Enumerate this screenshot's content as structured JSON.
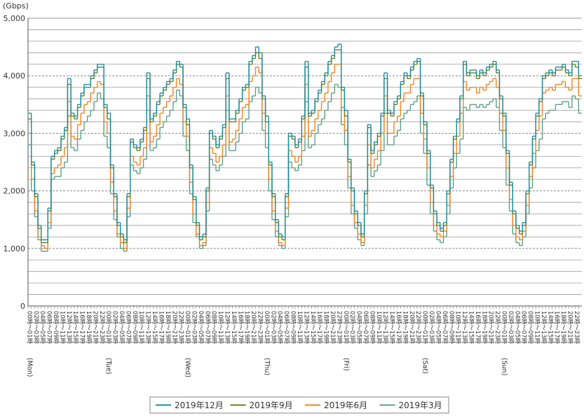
{
  "chart_data": {
    "type": "step-line",
    "y_unit": "(Gbps)",
    "ylim": [
      0,
      5000
    ],
    "yticks": [
      0,
      {
        "value": 1000,
        "label": "1,000"
      },
      {
        "value": 2000,
        "label": "2,000"
      },
      {
        "value": 3000,
        "label": "3,000"
      },
      {
        "value": 4000,
        "label": "4,000"
      },
      {
        "value": 5000,
        "label": "5,000"
      }
    ],
    "minor_yticks": [
      200,
      400,
      600,
      800,
      1200,
      1400,
      1600,
      1800,
      2200,
      2400,
      2600,
      2800,
      3200,
      3400,
      3600,
      3800,
      4200,
      4400,
      4600,
      4800
    ],
    "grid": true,
    "day_labels": [
      "(Mon)",
      "(Tue)",
      "(Wed)",
      "(Thu)",
      "(Fri)",
      "(Sat)",
      "(Sun)"
    ],
    "categories": [
      "00時～01時",
      null,
      "02時～03時",
      null,
      "04時～05時",
      null,
      "06時～07時",
      null,
      "08時～09時",
      null,
      "10時～11時",
      null,
      "12時～13時",
      null,
      "14時～15時",
      null,
      "16時～17時",
      null,
      "18時～19時",
      null,
      "20時～21時",
      null,
      "22時～23時",
      null,
      "00時～01時",
      null,
      "02時～03時",
      null,
      "04時～05時",
      null,
      "06時～07時",
      null,
      "08時～09時",
      null,
      "10時～11時",
      null,
      "12時～13時",
      null,
      "14時～15時",
      null,
      "16時～17時",
      null,
      "18時～19時",
      null,
      "20時～21時",
      null,
      "22時～23時",
      null,
      "00時～01時",
      null,
      "02時～03時",
      null,
      "04時～05時",
      null,
      "06時～07時",
      null,
      "08時～09時",
      null,
      "10時～11時",
      null,
      "12時～13時",
      null,
      "14時～15時",
      null,
      "16時～17時",
      null,
      "18時～19時",
      null,
      "20時～21時",
      null,
      "22時～23時",
      null,
      "00時～01時",
      null,
      "02時～03時",
      null,
      "04時～05時",
      null,
      "06時～07時",
      null,
      "08時～09時",
      null,
      "10時～11時",
      null,
      "12時～13時",
      null,
      "14時～15時",
      null,
      "16時～17時",
      null,
      "18時～19時",
      null,
      "20時～21時",
      null,
      "22時～23時",
      null,
      "00時～01時",
      null,
      "02時～03時",
      null,
      "04時～05時",
      null,
      "06時～07時",
      null,
      "08時～09時",
      null,
      "10時～11時",
      null,
      "12時～13時",
      null,
      "14時～15時",
      null,
      "16時～17時",
      null,
      "18時～19時",
      null,
      "20時～21時",
      null,
      "22時～23時",
      null,
      "00時～01時",
      null,
      "02時～03時",
      null,
      "04時～05時",
      null,
      "06時～07時",
      null,
      "08時～09時",
      null,
      "10時～11時",
      null,
      "12時～13時",
      null,
      "14時～15時",
      null,
      "16時～17時",
      null,
      "18時～19時",
      null,
      "20時～21時",
      null,
      "22時～23時",
      null,
      "00時～01時",
      null,
      "02時～03時",
      null,
      "04時～05時",
      null,
      "06時～07時",
      null,
      "08時～09時",
      null,
      "10時～11時",
      null,
      "12時～13時",
      null,
      "14時～15時",
      null,
      "16時～17時",
      null,
      "18時～19時",
      null,
      "20時～21時",
      null,
      "22時～23時",
      null
    ],
    "series": [
      {
        "name": "2019年12月",
        "color": "#1b8ea3",
        "values": [
          3350,
          2500,
          1950,
          1400,
          1150,
          1150,
          1700,
          2600,
          2700,
          2750,
          2950,
          3100,
          3950,
          3350,
          3300,
          3500,
          3700,
          3850,
          3850,
          4000,
          4100,
          4200,
          4200,
          3500,
          3350,
          2450,
          1950,
          1450,
          1250,
          1150,
          1950,
          2900,
          2800,
          2750,
          2900,
          3100,
          4050,
          3250,
          3350,
          3550,
          3700,
          3800,
          3900,
          3950,
          4100,
          4250,
          4200,
          3500,
          3250,
          2450,
          1900,
          1450,
          1200,
          1250,
          2050,
          3050,
          2950,
          2800,
          2950,
          3150,
          4050,
          3250,
          3250,
          3400,
          3600,
          3800,
          3850,
          4250,
          4350,
          4500,
          4400,
          3650,
          3300,
          2500,
          1950,
          1500,
          1250,
          1200,
          1950,
          3000,
          2950,
          2800,
          2900,
          3300,
          4250,
          3350,
          3400,
          3600,
          3750,
          3900,
          4050,
          4250,
          4350,
          4500,
          4550,
          3800,
          3400,
          2550,
          2050,
          1650,
          1450,
          1250,
          2000,
          3150,
          2700,
          2850,
          3000,
          3350,
          4050,
          3400,
          3350,
          3550,
          3650,
          3900,
          4050,
          4000,
          4150,
          4250,
          4300,
          3700,
          3200,
          2700,
          2100,
          1650,
          1450,
          1350,
          1450,
          2000,
          2550,
          2950,
          3250,
          3650,
          4250,
          4050,
          4100,
          4100,
          4000,
          4100,
          4050,
          4150,
          4200,
          4250,
          4100,
          3650,
          3350,
          2700,
          2150,
          1650,
          1400,
          1300,
          1450,
          2000,
          2500,
          2950,
          3350,
          3600,
          4000,
          4050,
          4100,
          4050,
          4150,
          4150,
          4200,
          4100,
          4050,
          4250,
          4250,
          4000
        ]
      },
      {
        "name": "2019年9月",
        "color": "#6e7d1e",
        "values": [
          3250,
          2450,
          1900,
          1350,
          1100,
          1100,
          1650,
          2550,
          2650,
          2700,
          2900,
          3050,
          3850,
          3300,
          3250,
          3450,
          3650,
          3800,
          3800,
          3950,
          4050,
          4150,
          4150,
          3450,
          3250,
          2400,
          1900,
          1400,
          1200,
          1100,
          1900,
          2850,
          2750,
          2700,
          2850,
          3050,
          3950,
          3200,
          3300,
          3500,
          3650,
          3750,
          3850,
          3900,
          4050,
          4200,
          4150,
          3450,
          3150,
          2400,
          1850,
          1400,
          1150,
          1200,
          2000,
          3000,
          2900,
          2750,
          2900,
          3100,
          3950,
          3200,
          3200,
          3350,
          3550,
          3750,
          3800,
          4200,
          4300,
          4400,
          4300,
          3600,
          3200,
          2450,
          1900,
          1450,
          1200,
          1150,
          1900,
          2950,
          2900,
          2750,
          2850,
          3250,
          4150,
          3300,
          3350,
          3550,
          3700,
          3850,
          4000,
          4200,
          4300,
          4450,
          4450,
          3750,
          3300,
          2500,
          2000,
          1600,
          1400,
          1200,
          1950,
          3100,
          2650,
          2800,
          2950,
          3300,
          3950,
          3350,
          3300,
          3500,
          3600,
          3850,
          4000,
          3950,
          4100,
          4200,
          4250,
          3650,
          3150,
          2650,
          2050,
          1600,
          1400,
          1300,
          1400,
          1950,
          2500,
          2900,
          3200,
          3600,
          4200,
          4000,
          4050,
          4050,
          3950,
          4050,
          4000,
          4100,
          4150,
          4200,
          4050,
          3600,
          3300,
          2650,
          2100,
          1600,
          1350,
          1250,
          1400,
          1950,
          2450,
          2900,
          3300,
          3550,
          3950,
          4000,
          4050,
          4000,
          4100,
          4100,
          4150,
          4050,
          4000,
          4200,
          4150,
          3950
        ]
      },
      {
        "name": "2019年6月",
        "color": "#f28422",
        "values": [
          3000,
          2200,
          1650,
          1200,
          1050,
          1000,
          1450,
          2300,
          2400,
          2450,
          2600,
          2750,
          3550,
          2950,
          2900,
          3150,
          3350,
          3500,
          3550,
          3700,
          3800,
          3900,
          3850,
          3200,
          3000,
          2150,
          1650,
          1250,
          1100,
          1000,
          1700,
          2600,
          2500,
          2450,
          2600,
          2750,
          3650,
          2850,
          2950,
          3150,
          3350,
          3450,
          3550,
          3650,
          3800,
          3950,
          3850,
          3200,
          2950,
          2150,
          1600,
          1250,
          1050,
          1100,
          1800,
          2750,
          2650,
          2500,
          2600,
          2800,
          3650,
          2850,
          2900,
          3050,
          3250,
          3450,
          3500,
          3900,
          4000,
          4150,
          4050,
          3350,
          3000,
          2200,
          1650,
          1300,
          1100,
          1050,
          1700,
          2700,
          2600,
          2500,
          2600,
          2950,
          3850,
          2950,
          3050,
          3250,
          3400,
          3550,
          3700,
          3900,
          4050,
          4200,
          4200,
          3450,
          3050,
          2250,
          1750,
          1450,
          1250,
          1100,
          1750,
          2800,
          2400,
          2550,
          2700,
          3000,
          3650,
          3000,
          3000,
          3200,
          3300,
          3550,
          3700,
          3700,
          3850,
          3950,
          3950,
          3350,
          2900,
          2400,
          1800,
          1400,
          1250,
          1200,
          1300,
          1750,
          2250,
          2650,
          2950,
          3350,
          3900,
          3750,
          3800,
          3800,
          3700,
          3800,
          3750,
          3850,
          3900,
          3950,
          3800,
          3350,
          3050,
          2400,
          1850,
          1400,
          1200,
          1150,
          1300,
          1750,
          2250,
          2650,
          3050,
          3300,
          3700,
          3750,
          3800,
          3750,
          3850,
          3850,
          3900,
          3800,
          3750,
          3950,
          3950,
          3650
        ]
      },
      {
        "name": "2019年3月",
        "color": "#5e9f84",
        "values": [
          2800,
          2000,
          1550,
          1150,
          950,
          950,
          1350,
          2200,
          2250,
          2250,
          2400,
          2500,
          3300,
          2750,
          2700,
          2900,
          3050,
          3200,
          3300,
          3400,
          3550,
          3700,
          3600,
          2950,
          2750,
          1950,
          1500,
          1200,
          1000,
          950,
          1550,
          2450,
          2350,
          2300,
          2400,
          2550,
          3400,
          2700,
          2750,
          2900,
          3100,
          3200,
          3300,
          3400,
          3550,
          3750,
          3650,
          2950,
          2700,
          1950,
          1450,
          1200,
          1000,
          1050,
          1650,
          2550,
          2450,
          2350,
          2450,
          2600,
          3400,
          2700,
          2700,
          2850,
          3000,
          3200,
          3250,
          3550,
          3650,
          3800,
          3700,
          3050,
          2750,
          2000,
          1500,
          1200,
          1050,
          1000,
          1550,
          2500,
          2400,
          2350,
          2450,
          2700,
          3550,
          2750,
          2800,
          3000,
          3150,
          3250,
          3400,
          3550,
          3700,
          3850,
          3800,
          3150,
          2800,
          2050,
          1600,
          1350,
          1150,
          1050,
          1600,
          2450,
          2250,
          2350,
          2450,
          2700,
          3350,
          2800,
          2800,
          2950,
          3050,
          3250,
          3350,
          3400,
          3500,
          3550,
          3650,
          3000,
          2650,
          2100,
          1600,
          1300,
          1150,
          1100,
          1200,
          1600,
          2050,
          2400,
          2650,
          2900,
          3450,
          3400,
          3500,
          3500,
          3450,
          3500,
          3450,
          3500,
          3550,
          3600,
          3450,
          3050,
          2750,
          2100,
          1650,
          1250,
          1100,
          1050,
          1200,
          1600,
          2050,
          2400,
          2700,
          2900,
          3250,
          3350,
          3400,
          3400,
          3500,
          3500,
          3550,
          3550,
          3450,
          3650,
          3600,
          3350
        ]
      }
    ]
  }
}
